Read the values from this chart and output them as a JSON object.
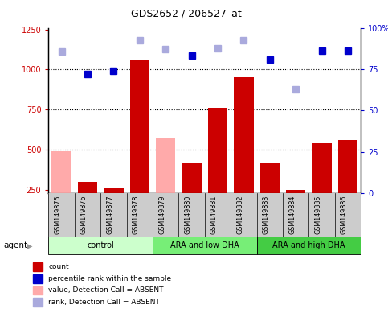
{
  "title": "GDS2652 / 206527_at",
  "samples": [
    "GSM149875",
    "GSM149876",
    "GSM149877",
    "GSM149878",
    "GSM149879",
    "GSM149880",
    "GSM149881",
    "GSM149882",
    "GSM149883",
    "GSM149884",
    "GSM149885",
    "GSM149886"
  ],
  "groups": [
    {
      "label": "control",
      "start": 0,
      "end": 4,
      "color": "#ccffcc"
    },
    {
      "label": "ARA and low DHA",
      "start": 4,
      "end": 8,
      "color": "#77ee77"
    },
    {
      "label": "ARA and high DHA",
      "start": 8,
      "end": 12,
      "color": "#44cc44"
    }
  ],
  "count_values": [
    null,
    300,
    260,
    1060,
    null,
    420,
    760,
    950,
    420,
    250,
    540,
    560
  ],
  "count_absent_values": [
    490,
    null,
    null,
    null,
    575,
    null,
    null,
    null,
    null,
    null,
    null,
    null
  ],
  "percentile_values": [
    null,
    970,
    990,
    null,
    null,
    1085,
    null,
    null,
    1060,
    null,
    1115,
    1115
  ],
  "percentile_absent_values": [
    1110,
    null,
    null,
    1185,
    1125,
    null,
    1130,
    1185,
    null,
    875,
    null,
    null
  ],
  "ylim_left": [
    230,
    1260
  ],
  "ylim_right": [
    0,
    100
  ],
  "yticks_left": [
    250,
    500,
    750,
    1000,
    1250
  ],
  "yticks_right": [
    0,
    25,
    50,
    75,
    100
  ],
  "left_tick_labels": [
    "250",
    "500",
    "750",
    "1000",
    "1250"
  ],
  "right_tick_labels": [
    "0",
    "25",
    "50",
    "75",
    "100%"
  ],
  "bar_color": "#cc0000",
  "bar_absent_color": "#ffaaaa",
  "dot_color": "#0000cc",
  "dot_absent_color": "#aaaadd",
  "plot_bg": "#ffffff",
  "sample_bg": "#cccccc",
  "hgrid_values": [
    500,
    750,
    1000
  ],
  "legend_items": [
    {
      "color": "#cc0000",
      "label": "count"
    },
    {
      "color": "#0000cc",
      "label": "percentile rank within the sample"
    },
    {
      "color": "#ffaaaa",
      "label": "value, Detection Call = ABSENT"
    },
    {
      "color": "#aaaadd",
      "label": "rank, Detection Call = ABSENT"
    }
  ]
}
